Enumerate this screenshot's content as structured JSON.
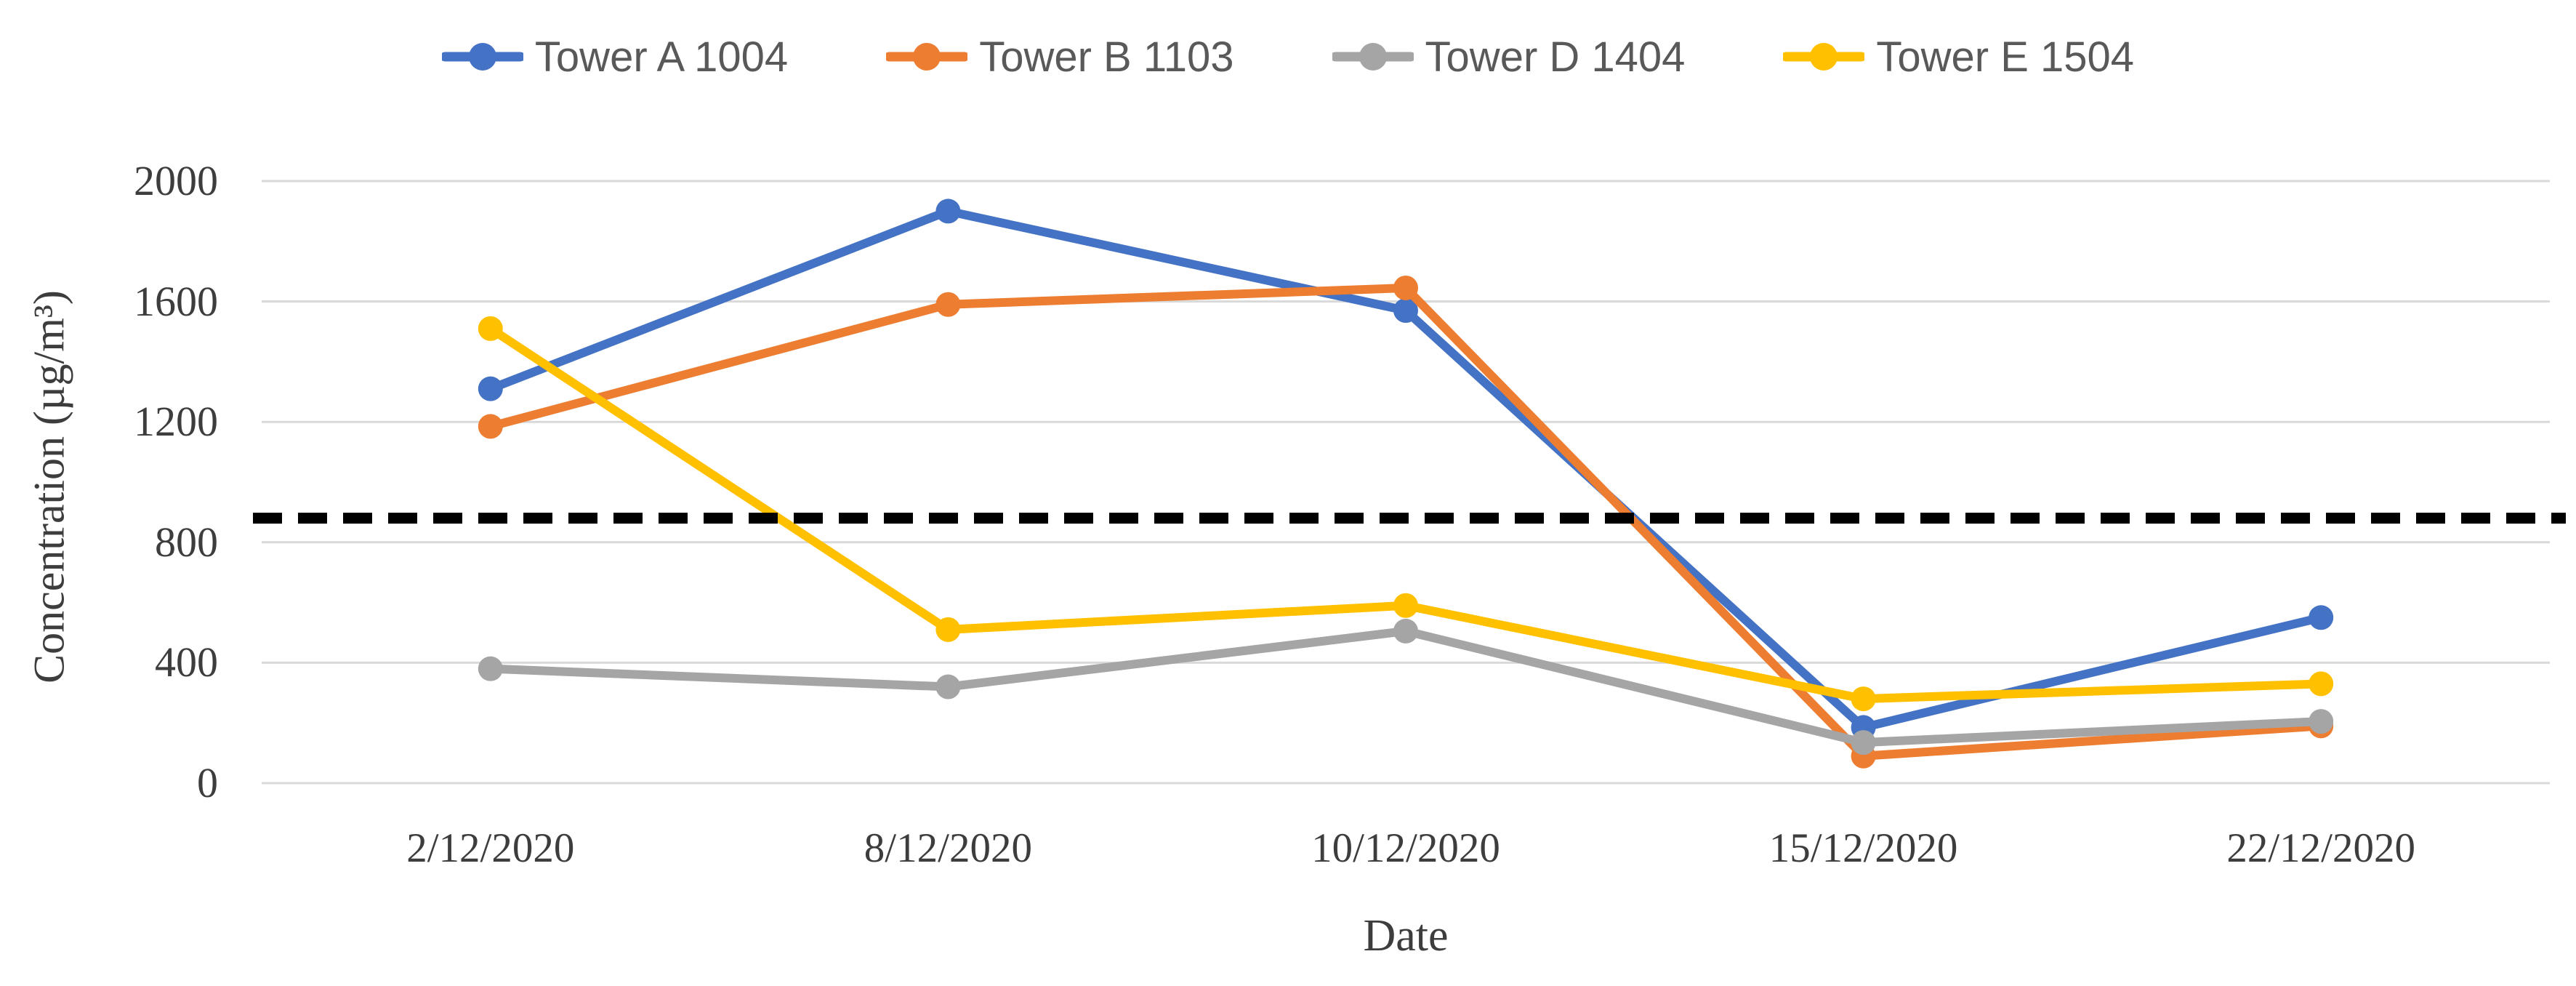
{
  "chart_data": {
    "type": "line",
    "title": "",
    "xlabel": "Date",
    "ylabel": "Concentration (µg/m³)",
    "ylim": [
      0,
      2000
    ],
    "yticks": [
      "0",
      "400",
      "800",
      "1200",
      "1600",
      "2000"
    ],
    "ytick_values": [
      0,
      400,
      800,
      1200,
      1600,
      2000
    ],
    "grid": true,
    "legend_position": "top",
    "categories": [
      "2/12/2020",
      "8/12/2020",
      "10/12/2020",
      "15/12/2020",
      "22/12/2020"
    ],
    "series": [
      {
        "name": "Tower A 1004",
        "color": "#4472C4",
        "values": [
          1310,
          1900,
          1570,
          185,
          550
        ]
      },
      {
        "name": "Tower B 1103",
        "color": "#ED7D31",
        "values": [
          1185,
          1590,
          1645,
          90,
          190
        ]
      },
      {
        "name": "Tower D 1404",
        "color": "#A5A5A5",
        "values": [
          380,
          320,
          505,
          135,
          205
        ]
      },
      {
        "name": "Tower E 1504",
        "color": "#FFC000",
        "values": [
          1510,
          510,
          590,
          280,
          330
        ]
      }
    ],
    "threshold_line": {
      "value": 880,
      "color": "#000000",
      "style": "dashed"
    },
    "colors": {
      "gridline": "#D9D9D9",
      "axis_text": "#3d3d3d",
      "legend_text": "#595959",
      "background": "#FFFFFF"
    }
  }
}
